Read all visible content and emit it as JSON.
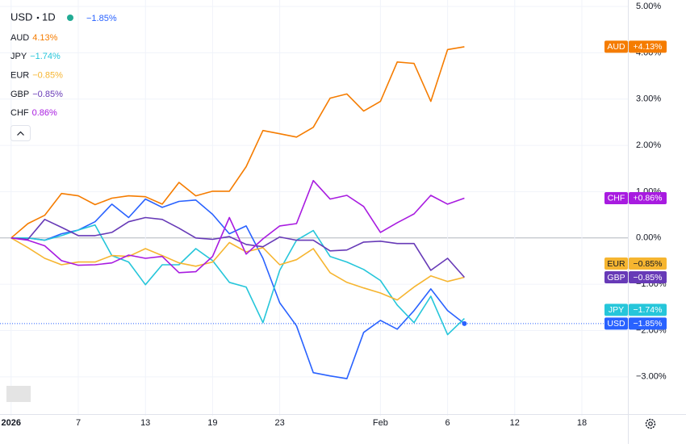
{
  "chart_data": {
    "type": "line",
    "interval": "1D",
    "x": [
      "2026-01-01",
      "2026-01-02",
      "2026-01-05",
      "2026-01-06",
      "2026-01-07",
      "2026-01-08",
      "2026-01-09",
      "2026-01-12",
      "2026-01-13",
      "2026-01-14",
      "2026-01-15",
      "2026-01-16",
      "2026-01-19",
      "2026-01-20",
      "2026-01-21",
      "2026-01-22",
      "2026-01-23",
      "2026-01-26",
      "2026-01-27",
      "2026-01-28",
      "2026-01-29",
      "2026-01-30",
      "2026-02-02",
      "2026-02-03",
      "2026-02-04",
      "2026-02-05",
      "2026-02-06",
      "2026-02-09"
    ],
    "xticks": [
      {
        "value": "2026-01-01",
        "label": "2026"
      },
      {
        "value": "2026-01-07",
        "label": "7"
      },
      {
        "value": "2026-01-13",
        "label": "13"
      },
      {
        "value": "2026-01-19",
        "label": "19"
      },
      {
        "value": "2026-01-23",
        "label": "23"
      },
      {
        "value": "2026-02-02",
        "label": "Feb"
      },
      {
        "value": "2026-02-06",
        "label": "6"
      },
      {
        "value": "2026-02-12",
        "label": "12"
      },
      {
        "value": "2026-02-18",
        "label": "18"
      }
    ],
    "ylim": [
      -3.84,
      5.14
    ],
    "yticks": [
      {
        "value": 5,
        "label": "5.00%"
      },
      {
        "value": 4,
        "label": "4.00%"
      },
      {
        "value": 3,
        "label": "3.00%"
      },
      {
        "value": 2,
        "label": "2.00%"
      },
      {
        "value": 1,
        "label": "1.00%"
      },
      {
        "value": 0,
        "label": "0.00%"
      },
      {
        "value": -1,
        "label": "−1.00%"
      },
      {
        "value": -2,
        "label": "−2.00%"
      },
      {
        "value": -3,
        "label": "−3.00%"
      }
    ],
    "grid": true,
    "series": [
      {
        "name": "USD",
        "color": "#2962ff",
        "legend_value": "−1.85%",
        "values": [
          0,
          0,
          -0.05,
          0.09,
          0.17,
          0.35,
          0.73,
          0.44,
          0.84,
          0.66,
          0.79,
          0.82,
          0.51,
          0.09,
          0.26,
          -0.44,
          -1.4,
          -1.9,
          -2.91,
          -2.98,
          -3.04,
          -2.04,
          -1.78,
          -1.97,
          -1.57,
          -1.1,
          -1.57,
          -1.85
        ],
        "value_labels": [
          null,
          null,
          null,
          null,
          null,
          null,
          null,
          null,
          null,
          null,
          null,
          null,
          null,
          null,
          null,
          null,
          null,
          null,
          null,
          null,
          null,
          null,
          null,
          null,
          null,
          null,
          null,
          "−1.85%"
        ]
      },
      {
        "name": "AUD",
        "color": "#f57c00",
        "legend_value": "4.13%",
        "values": [
          0,
          0.31,
          0.49,
          0.96,
          0.91,
          0.72,
          0.86,
          0.91,
          0.89,
          0.73,
          1.2,
          0.91,
          1.01,
          1.01,
          1.54,
          2.32,
          2.25,
          2.18,
          2.39,
          3.02,
          3.11,
          2.74,
          2.95,
          3.8,
          3.77,
          2.95,
          4.07,
          4.13
        ],
        "value_labels": [
          null,
          null,
          null,
          null,
          null,
          null,
          null,
          null,
          null,
          null,
          null,
          null,
          null,
          null,
          null,
          null,
          null,
          null,
          null,
          null,
          null,
          null,
          null,
          null,
          null,
          null,
          null,
          "+4.13%"
        ]
      },
      {
        "name": "JPY",
        "color": "#26c6da",
        "legend_value": "−1.74%",
        "values": [
          0,
          0,
          -0.05,
          0.05,
          0.17,
          0.28,
          -0.38,
          -0.52,
          -1.01,
          -0.58,
          -0.58,
          -0.23,
          -0.49,
          -0.96,
          -1.06,
          -1.83,
          -0.7,
          -0.05,
          0.16,
          -0.4,
          -0.52,
          -0.68,
          -0.92,
          -1.45,
          -1.83,
          -1.26,
          -2.09,
          -1.74
        ],
        "value_labels": [
          null,
          null,
          null,
          null,
          null,
          null,
          null,
          null,
          null,
          null,
          null,
          null,
          null,
          null,
          null,
          null,
          null,
          null,
          null,
          null,
          null,
          null,
          null,
          null,
          null,
          null,
          null,
          "−1.74%"
        ]
      },
      {
        "name": "EUR",
        "color": "#f6b530",
        "legend_value": "−0.85%",
        "values": [
          0,
          -0.21,
          -0.44,
          -0.58,
          -0.52,
          -0.52,
          -0.38,
          -0.4,
          -0.23,
          -0.38,
          -0.54,
          -0.61,
          -0.52,
          -0.1,
          -0.3,
          -0.21,
          -0.58,
          -0.47,
          -0.23,
          -0.75,
          -0.96,
          -1.08,
          -1.19,
          -1.34,
          -1.06,
          -0.82,
          -0.94,
          -0.85
        ],
        "value_labels": [
          null,
          null,
          null,
          null,
          null,
          null,
          null,
          null,
          null,
          null,
          null,
          null,
          null,
          null,
          null,
          null,
          null,
          null,
          null,
          null,
          null,
          null,
          null,
          null,
          null,
          null,
          null,
          "−0.85%"
        ]
      },
      {
        "name": "GBP",
        "color": "#673ab7",
        "legend_value": "−0.85%",
        "values": [
          0,
          -0.03,
          0.4,
          0.23,
          0.05,
          0.05,
          0.12,
          0.35,
          0.44,
          0.4,
          0.21,
          0,
          -0.03,
          0.03,
          -0.14,
          -0.19,
          0.02,
          -0.05,
          -0.05,
          -0.28,
          -0.26,
          -0.09,
          -0.07,
          -0.12,
          -0.12,
          -0.7,
          -0.44,
          -0.85
        ],
        "value_labels": [
          null,
          null,
          null,
          null,
          null,
          null,
          null,
          null,
          null,
          null,
          null,
          null,
          null,
          null,
          null,
          null,
          null,
          null,
          null,
          null,
          null,
          null,
          null,
          null,
          null,
          null,
          null,
          "−0.85%"
        ]
      },
      {
        "name": "CHF",
        "color": "#a81be0",
        "legend_value": "0.86%",
        "values": [
          0,
          -0.05,
          -0.17,
          -0.49,
          -0.59,
          -0.58,
          -0.54,
          -0.37,
          -0.44,
          -0.4,
          -0.75,
          -0.73,
          -0.4,
          0.44,
          -0.35,
          -0.02,
          0.26,
          0.31,
          1.24,
          0.84,
          0.92,
          0.68,
          0.12,
          0.33,
          0.52,
          0.92,
          0.73,
          0.86
        ],
        "value_labels": [
          null,
          null,
          null,
          null,
          null,
          null,
          null,
          null,
          null,
          null,
          null,
          null,
          null,
          null,
          null,
          null,
          null,
          null,
          null,
          null,
          null,
          null,
          null,
          null,
          null,
          null,
          null,
          "+0.86%"
        ]
      }
    ]
  }
}
